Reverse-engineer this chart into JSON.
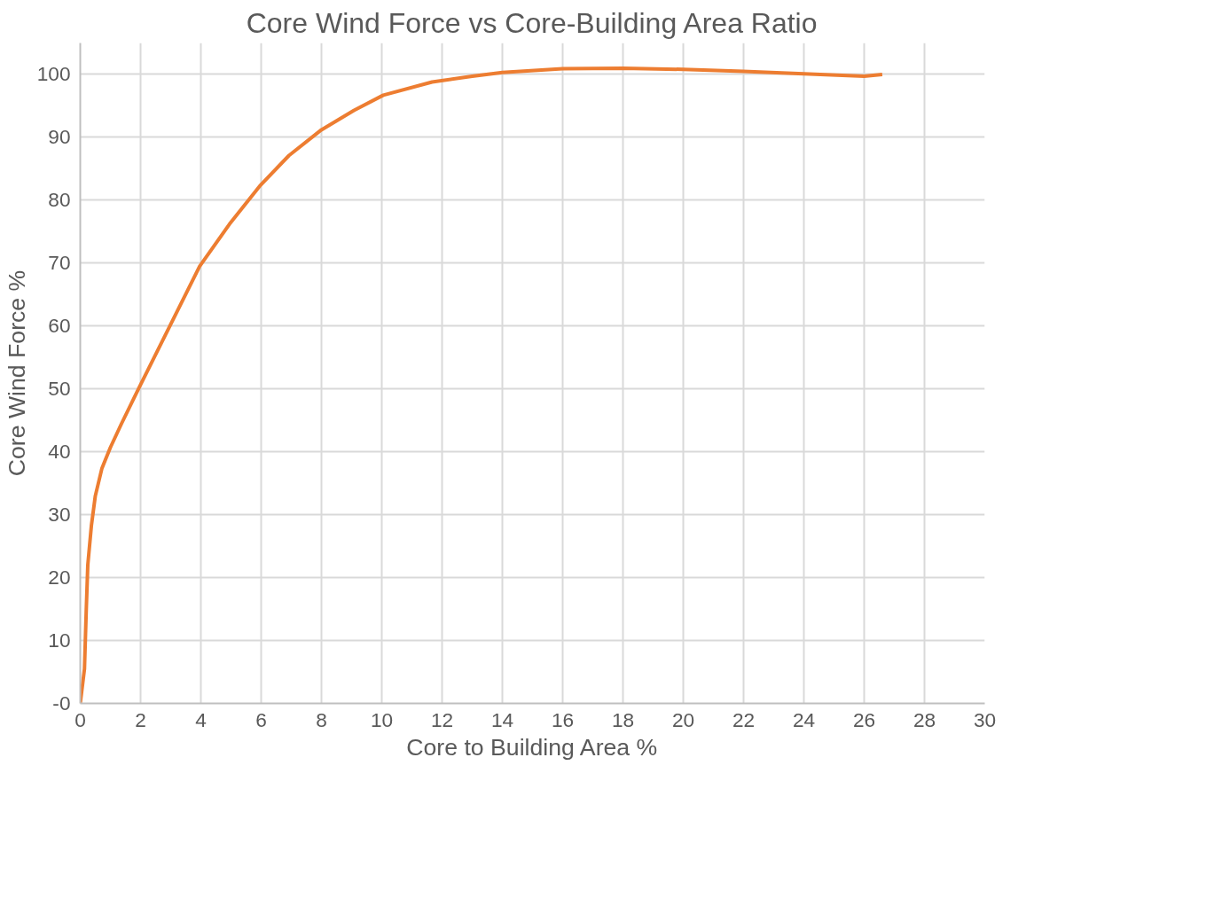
{
  "chart_data": {
    "type": "line",
    "title": "Core Wind Force vs Core-Building Area Ratio",
    "xlabel": "Core to Building Area %",
    "ylabel": "Core Wind Force %",
    "x": [
      0,
      0.14,
      0.2,
      0.25,
      0.37,
      0.5,
      0.72,
      1.0,
      1.37,
      1.95,
      2.97,
      3.96,
      4.95,
      5.98,
      6.92,
      8.0,
      9.08,
      10.05,
      11.67,
      13,
      14,
      16,
      18,
      20,
      22,
      24,
      26,
      26.6
    ],
    "series": [
      {
        "color": "#ed7d31",
        "values": [
          0,
          5.5,
          15,
          22,
          28.3,
          33,
          37.4,
          40.7,
          44.5,
          50.2,
          60,
          69.5,
          76.2,
          82.4,
          87.1,
          91.2,
          94.3,
          96.7,
          98.8,
          99.7,
          100.3,
          100.9,
          101,
          100.8,
          100.5,
          100.1,
          99.7,
          100
        ]
      }
    ],
    "xlim": [
      0,
      30
    ],
    "xticks": [
      0,
      2,
      4,
      6,
      8,
      10,
      12,
      14,
      16,
      18,
      20,
      22,
      24,
      26,
      28,
      30
    ],
    "ylim": [
      0,
      105
    ],
    "yticks": [
      {
        "value": 0,
        "label": "-0"
      },
      10,
      20,
      30,
      40,
      50,
      60,
      70,
      80,
      90,
      100
    ],
    "grid": true,
    "marker": "none",
    "line_style": "solid"
  }
}
